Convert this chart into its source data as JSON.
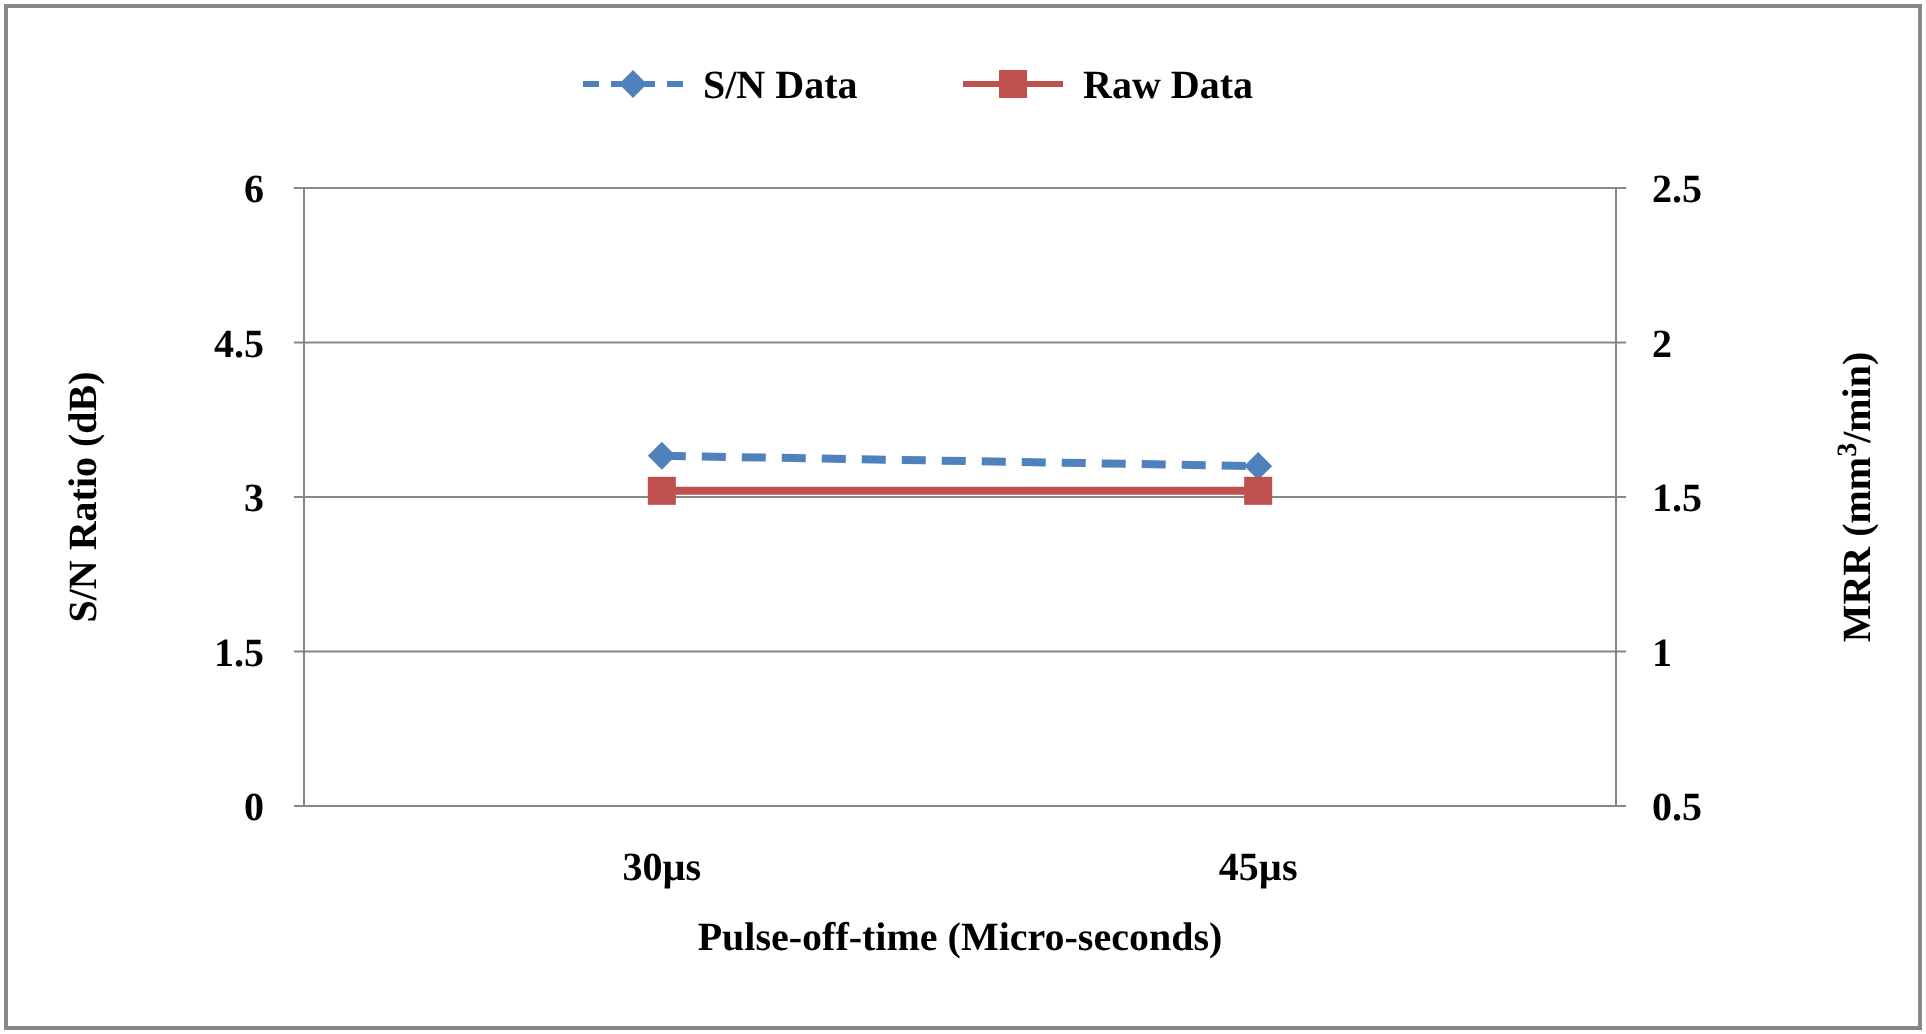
{
  "chart_data": {
    "type": "line",
    "xlabel": "Pulse-off-time (Micro-seconds)",
    "ylabel": "S/N Ratio (dB)",
    "y2label": "MRR (mm$^{3}$/min)",
    "categories": [
      "30µs",
      "45µs"
    ],
    "series": [
      {
        "name": "S/N Data",
        "color": "#4f81bd",
        "values": [
          3.4,
          3.3
        ],
        "marker": "diamond",
        "line_style": "dashed"
      },
      {
        "name": "Raw Data",
        "color": "#c0504d",
        "values": [
          1.52,
          1.52
        ],
        "axis": "y2",
        "marker": "square",
        "line_style": "solid"
      }
    ],
    "ylim": [
      0,
      6
    ],
    "yticks": [
      0,
      1.5,
      3,
      4.5,
      6
    ],
    "y2lim": [
      0.5,
      2.5
    ],
    "y2ticks": [
      0.5,
      1,
      1.5,
      2,
      2.5
    ],
    "grid": "y",
    "legend": "top"
  }
}
